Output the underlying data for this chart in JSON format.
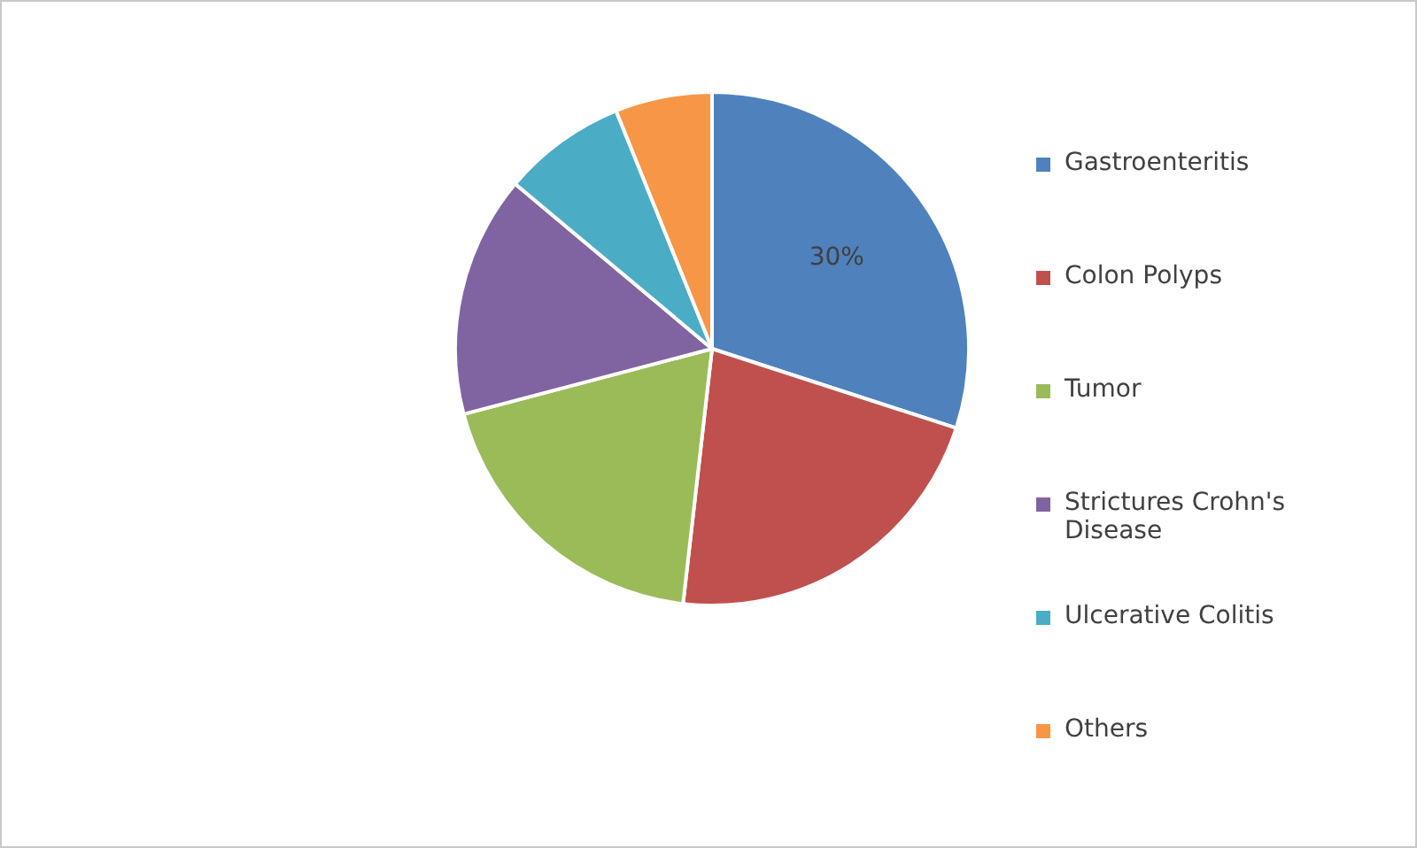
{
  "chart_data": {
    "type": "pie",
    "categories": [
      "Gastroenteritis",
      "Colon Polyps",
      "Tumor",
      "Strictures Crohn's Disease",
      "Ulcerative Colitis",
      "Others"
    ],
    "values": [
      30,
      21.8,
      19.1,
      15.2,
      7.8,
      6.1
    ],
    "colors": [
      "#4f81bd",
      "#c0504d",
      "#9bbb59",
      "#8064a2",
      "#4bacc6",
      "#f79646"
    ],
    "value_labels": [
      "30%",
      null,
      null,
      null,
      null,
      null
    ],
    "legend": "right"
  }
}
